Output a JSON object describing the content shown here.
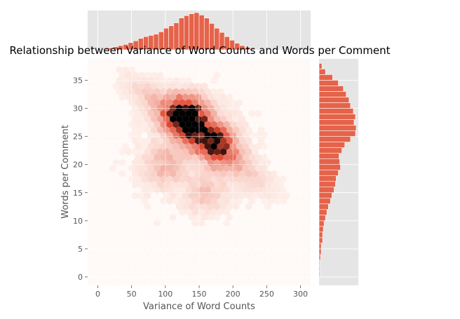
{
  "chart_data": {
    "type": "hexbin-jointplot",
    "title": "Relationship between Variance of Word Counts and Words per Comment",
    "xlabel": "Variance of Word Counts",
    "ylabel": "Words per Comment",
    "xlim": [
      -15,
      315
    ],
    "ylim": [
      -1.5,
      38.8
    ],
    "xticks": [
      0,
      50,
      100,
      150,
      200,
      250,
      300
    ],
    "yticks": [
      0,
      5,
      10,
      15,
      20,
      25,
      30,
      35
    ],
    "grid": true,
    "colors": {
      "panel_bg": "#e5e5e5",
      "grid": "#ffffff",
      "hist_bar": "#e5634a",
      "hist_edge": "#ffffff",
      "hex_low": "#fff5f0",
      "hex_mid": "#e34a33",
      "hex_high": "#000000"
    },
    "hexbin_density_peaks": [
      {
        "x": 132,
        "y": 28.5,
        "weight": 1.0
      },
      {
        "x": 175,
        "y": 24.0,
        "weight": 0.55
      },
      {
        "x": 100,
        "y": 20.0,
        "weight": 0.2
      },
      {
        "x": 160,
        "y": 15.0,
        "weight": 0.15
      }
    ],
    "marginal_x": {
      "bin_edges_start": 0,
      "bin_width": 7.5,
      "counts": [
        1,
        2,
        3,
        5,
        7,
        9,
        12,
        15,
        19,
        22,
        24,
        26,
        30,
        36,
        40,
        45,
        53,
        57,
        60,
        62,
        58,
        53,
        44,
        36,
        29,
        22,
        16,
        11,
        7,
        4,
        2,
        1,
        1,
        1,
        1,
        1,
        1,
        1,
        1,
        1
      ]
    },
    "marginal_y": {
      "bin_edges_start": 0,
      "bin_width": 1,
      "counts": [
        1,
        1,
        1,
        2,
        3,
        3,
        5,
        5,
        6,
        7,
        9,
        11,
        13,
        16,
        18,
        21,
        23,
        24,
        27,
        30,
        29,
        28,
        32,
        36,
        44,
        51,
        52,
        49,
        51,
        48,
        44,
        42,
        38,
        34,
        27,
        19,
        9,
        4
      ]
    }
  }
}
